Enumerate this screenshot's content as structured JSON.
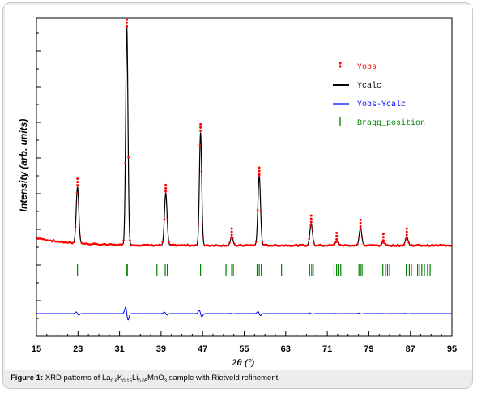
{
  "chart_data": {
    "type": "line",
    "title": "",
    "xlabel": "2θ (°)",
    "ylabel": "Intensity (arb. units)",
    "xlim": [
      15,
      95
    ],
    "x_ticks": [
      "15",
      "23",
      "31",
      "39",
      "47",
      "55",
      "63",
      "71",
      "79",
      "87",
      "95"
    ],
    "legend_position": "top-right",
    "grid": false,
    "series": [
      {
        "name": "Yobs",
        "color": "#ff0000",
        "style": "dots"
      },
      {
        "name": "Ycalc",
        "color": "#000000",
        "style": "line"
      },
      {
        "name": "Yobs-Ycalc",
        "color": "#0000ff",
        "style": "line"
      },
      {
        "name": "Bragg_position",
        "color": "#008000",
        "style": "ticks"
      }
    ],
    "peaks": [
      {
        "x": 22.9,
        "y": 0.26
      },
      {
        "x": 32.4,
        "y": 1.0
      },
      {
        "x": 39.9,
        "y": 0.24
      },
      {
        "x": 46.6,
        "y": 0.52
      },
      {
        "x": 52.6,
        "y": 0.04
      },
      {
        "x": 57.9,
        "y": 0.32
      },
      {
        "x": 67.9,
        "y": 0.1
      },
      {
        "x": 72.8,
        "y": 0.02
      },
      {
        "x": 77.4,
        "y": 0.08
      },
      {
        "x": 81.8,
        "y": 0.015
      },
      {
        "x": 86.3,
        "y": 0.04
      }
    ],
    "bragg_positions": [
      22.9,
      32.3,
      32.5,
      38.2,
      39.8,
      40.2,
      46.6,
      51.5,
      52.6,
      52.9,
      57.5,
      57.9,
      58.3,
      62.2,
      67.6,
      68.0,
      68.3,
      72.3,
      72.8,
      73.1,
      73.6,
      77.1,
      77.4,
      77.7,
      81.7,
      82.2,
      82.6,
      83.0,
      86.2,
      86.8,
      87.2,
      88.4,
      88.8,
      89.2,
      89.7,
      90.3,
      90.8
    ]
  },
  "caption": {
    "label": "Figure 1:",
    "text_pre": " XRD patterns of La",
    "sub1": "0.8",
    "el_k": "K",
    "sub2": "0.15",
    "el_li": "Li",
    "sub3": "0.05",
    "text_post": "MnO",
    "sub4": "3",
    "text_end": " sample with Rietveld refinement."
  }
}
